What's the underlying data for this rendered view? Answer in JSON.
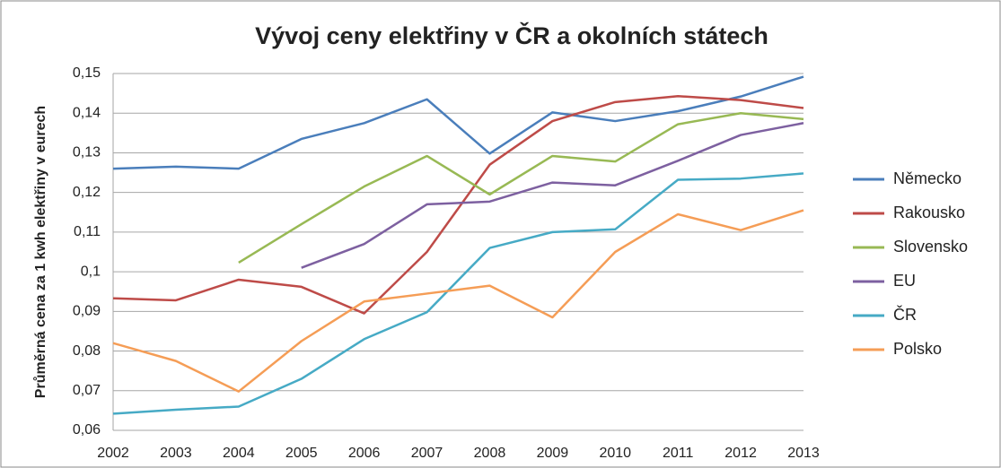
{
  "chart_data": {
    "type": "line",
    "title": "Vývoj ceny elektřiny v ČR a okolních státech",
    "y_label": "Průměrná cena za 1 kwh elektřiny v eurech",
    "categories": [
      "2002",
      "2003",
      "2004",
      "2005",
      "2006",
      "2007",
      "2008",
      "2009",
      "2010",
      "2011",
      "2012",
      "2013"
    ],
    "ylim": [
      0.06,
      0.15
    ],
    "yticks": [
      {
        "value": 0.06,
        "label": "0,06"
      },
      {
        "value": 0.07,
        "label": "0,07"
      },
      {
        "value": 0.08,
        "label": "0,08"
      },
      {
        "value": 0.09,
        "label": "0,09"
      },
      {
        "value": 0.1,
        "label": "0,1"
      },
      {
        "value": 0.11,
        "label": "0,11"
      },
      {
        "value": 0.12,
        "label": "0,12"
      },
      {
        "value": 0.13,
        "label": "0,13"
      },
      {
        "value": 0.14,
        "label": "0,14"
      },
      {
        "value": 0.15,
        "label": "0,15"
      }
    ],
    "grid": true,
    "legend": "right",
    "series": [
      {
        "name": "Německo",
        "color": "#4a7ebb",
        "values": [
          0.126,
          0.1265,
          0.126,
          0.1335,
          0.1375,
          0.1435,
          0.1298,
          0.1402,
          0.138,
          0.1405,
          0.1442,
          0.1492
        ]
      },
      {
        "name": "Rakousko",
        "color": "#be4b48",
        "values": [
          0.0933,
          0.0928,
          0.098,
          0.0962,
          0.0895,
          0.105,
          0.127,
          0.138,
          0.1428,
          0.1443,
          0.1433,
          0.1413
        ]
      },
      {
        "name": "Slovensko",
        "color": "#98b954",
        "values": [
          null,
          null,
          0.1023,
          0.112,
          0.1215,
          0.1292,
          0.1195,
          0.1292,
          0.1278,
          0.1372,
          0.14,
          0.1385
        ]
      },
      {
        "name": "EU",
        "color": "#7d60a0",
        "values": [
          null,
          null,
          null,
          0.101,
          0.107,
          0.117,
          0.1177,
          0.1225,
          0.1218,
          0.128,
          0.1345,
          0.1375
        ]
      },
      {
        "name": "ČR",
        "color": "#46aac5",
        "values": [
          0.0642,
          0.0652,
          0.066,
          0.073,
          0.083,
          0.0898,
          0.106,
          0.11,
          0.1107,
          0.1232,
          0.1235,
          0.1248
        ]
      },
      {
        "name": "Polsko",
        "color": "#f59d56",
        "values": [
          0.082,
          0.0775,
          0.0698,
          0.0825,
          0.0925,
          0.0945,
          0.0965,
          0.0885,
          0.105,
          0.1145,
          0.1105,
          0.1155
        ]
      }
    ]
  }
}
